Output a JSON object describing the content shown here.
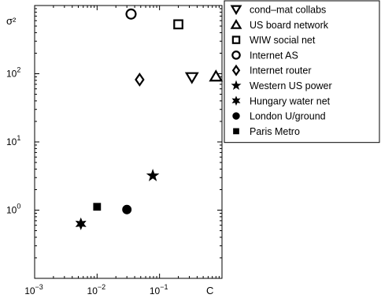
{
  "chart_data": {
    "type": "scatter",
    "xscale": "log",
    "yscale": "log",
    "xlim": [
      0.001,
      1
    ],
    "ylim": [
      0.1,
      1000
    ],
    "xlabel": "C",
    "ylabel": "σ²",
    "grid": false,
    "legend_position": "outside-right",
    "x_ticks": [
      {
        "value": 0.001,
        "base": "10",
        "exp": "−3"
      },
      {
        "value": 0.01,
        "base": "10",
        "exp": "−2"
      },
      {
        "value": 0.1,
        "base": "10",
        "exp": "−1"
      }
    ],
    "y_ticks": [
      {
        "value": 1,
        "base": "10",
        "exp": "0"
      },
      {
        "value": 10,
        "base": "10",
        "exp": "1"
      },
      {
        "value": 100,
        "base": "10",
        "exp": "2"
      }
    ],
    "series": [
      {
        "name": "cond–mat collabs",
        "marker": "triangle-down",
        "x": 0.33,
        "y": 88
      },
      {
        "name": "US board network",
        "marker": "triangle-up",
        "x": 0.8,
        "y": 92
      },
      {
        "name": "WIW social net",
        "marker": "square-open",
        "x": 0.2,
        "y": 530
      },
      {
        "name": "Internet AS",
        "marker": "circle-open",
        "x": 0.035,
        "y": 750
      },
      {
        "name": "Internet router",
        "marker": "diamond-open",
        "x": 0.048,
        "y": 82
      },
      {
        "name": "Western US power",
        "marker": "star5",
        "x": 0.078,
        "y": 3.2
      },
      {
        "name": "Hungary water net",
        "marker": "star6",
        "x": 0.0055,
        "y": 0.63
      },
      {
        "name": "London U/ground",
        "marker": "circle-filled",
        "x": 0.03,
        "y": 1.02
      },
      {
        "name": "Paris Metro",
        "marker": "square-filled",
        "x": 0.01,
        "y": 1.12
      }
    ]
  }
}
